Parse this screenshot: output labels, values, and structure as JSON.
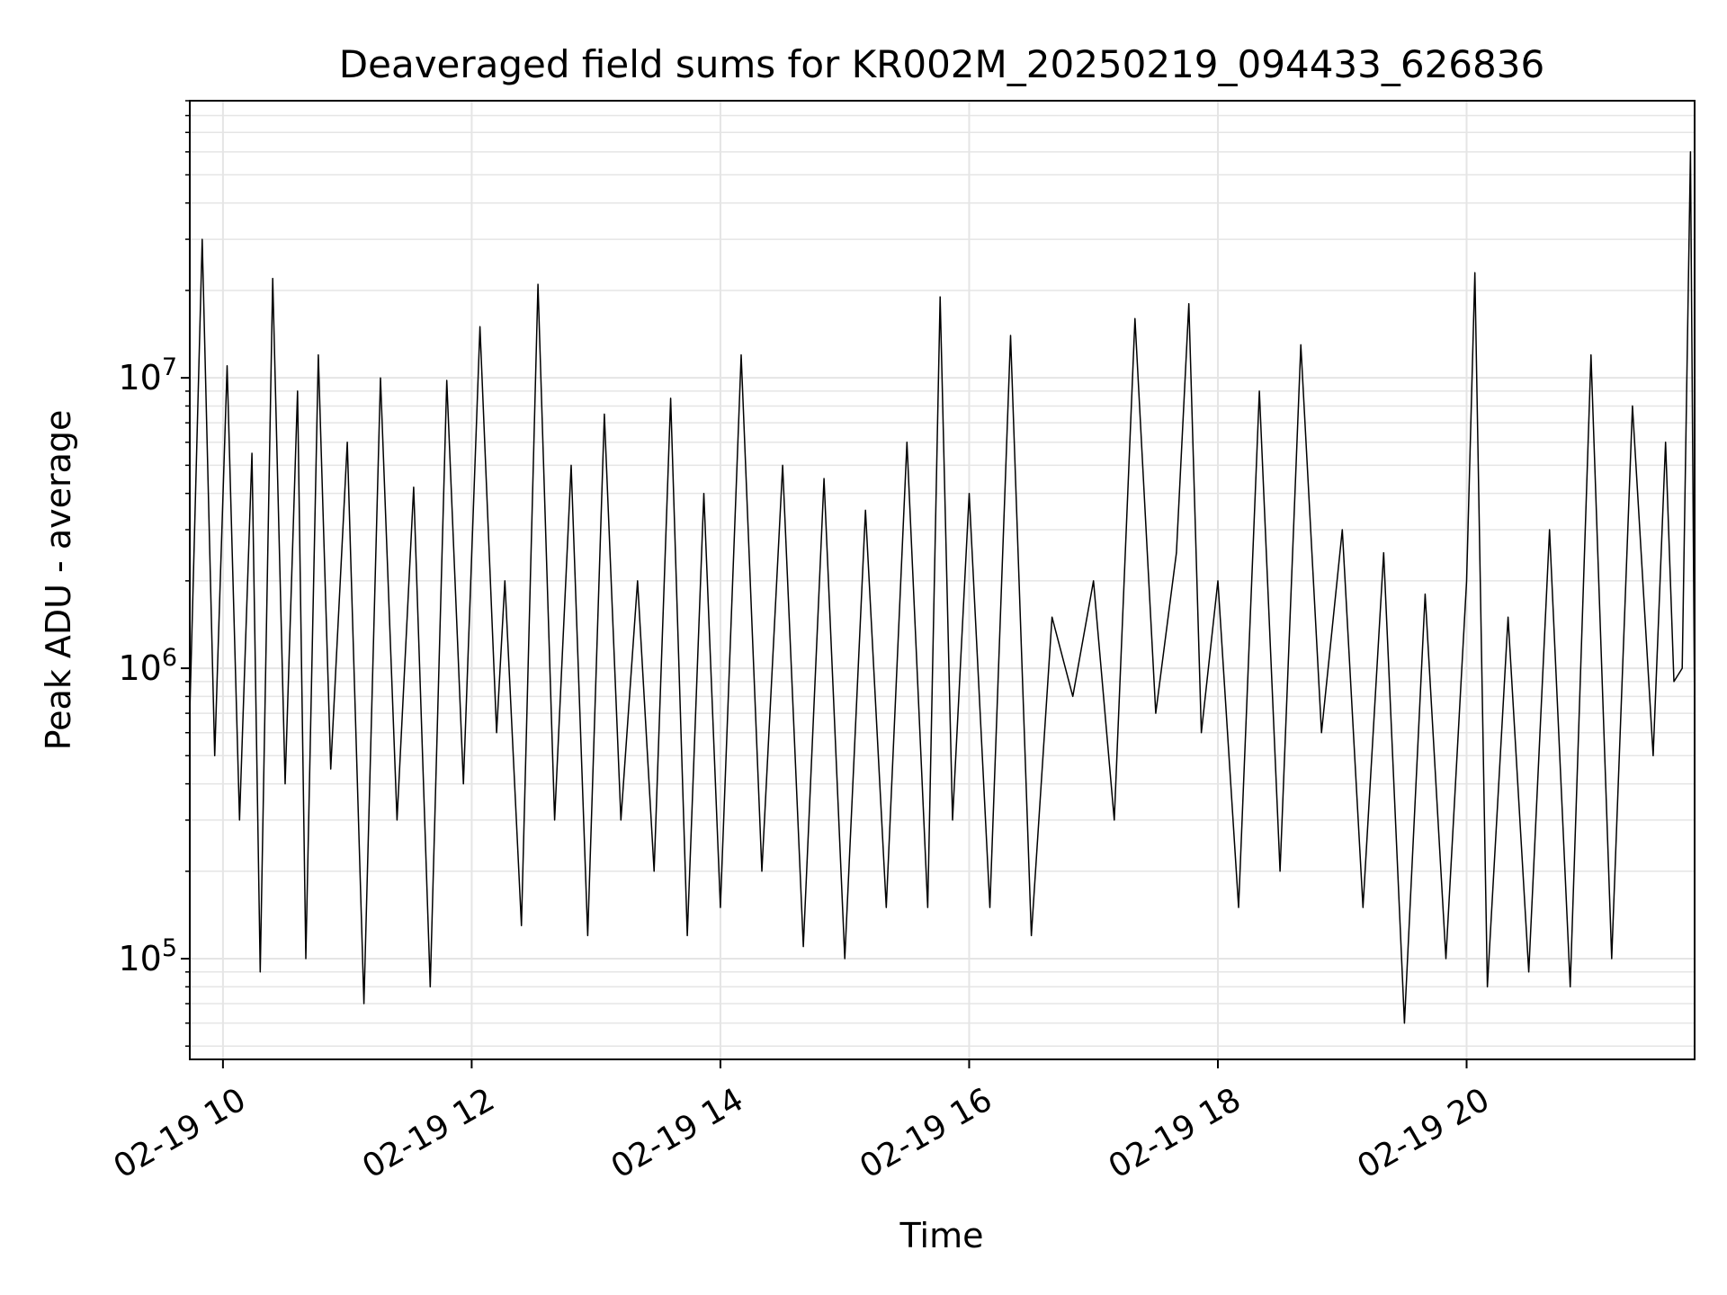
{
  "chart_data": {
    "type": "line",
    "title": "Deaveraged field sums for KR002M_20250219_094433_626836",
    "xlabel": "Time",
    "ylabel": "Peak ADU - average",
    "yscale": "log",
    "grid": true,
    "legend": "none",
    "line_color": "#000000",
    "grid_color": "#e5e5e5",
    "xlim": [
      "2025-02-19 09:44",
      "2025-02-19 21:50"
    ],
    "ylim": [
      45000,
      90000000
    ],
    "xticks": [
      {
        "time": "2025-02-19 10:00",
        "label": "02-19 10"
      },
      {
        "time": "2025-02-19 12:00",
        "label": "02-19 12"
      },
      {
        "time": "2025-02-19 14:00",
        "label": "02-19 14"
      },
      {
        "time": "2025-02-19 16:00",
        "label": "02-19 16"
      },
      {
        "time": "2025-02-19 18:00",
        "label": "02-19 18"
      },
      {
        "time": "2025-02-19 20:00",
        "label": "02-19 20"
      }
    ],
    "yticks": [
      {
        "value": 100000,
        "base": "10",
        "exp": "5"
      },
      {
        "value": 1000000,
        "base": "10",
        "exp": "6"
      },
      {
        "value": 10000000,
        "base": "10",
        "exp": "7"
      }
    ],
    "series": [
      {
        "x": [
          "2025-02-19 09:44",
          "2025-02-19 09:50",
          "2025-02-19 09:56",
          "2025-02-19 10:02",
          "2025-02-19 10:08",
          "2025-02-19 10:14",
          "2025-02-19 10:18",
          "2025-02-19 10:24",
          "2025-02-19 10:30",
          "2025-02-19 10:36",
          "2025-02-19 10:40",
          "2025-02-19 10:46",
          "2025-02-19 10:52",
          "2025-02-19 11:00",
          "2025-02-19 11:08",
          "2025-02-19 11:16",
          "2025-02-19 11:24",
          "2025-02-19 11:32",
          "2025-02-19 11:40",
          "2025-02-19 11:48",
          "2025-02-19 11:56",
          "2025-02-19 12:04",
          "2025-02-19 12:12",
          "2025-02-19 12:16",
          "2025-02-19 12:24",
          "2025-02-19 12:32",
          "2025-02-19 12:40",
          "2025-02-19 12:48",
          "2025-02-19 12:56",
          "2025-02-19 13:04",
          "2025-02-19 13:12",
          "2025-02-19 13:20",
          "2025-02-19 13:28",
          "2025-02-19 13:36",
          "2025-02-19 13:44",
          "2025-02-19 13:52",
          "2025-02-19 14:00",
          "2025-02-19 14:10",
          "2025-02-19 14:20",
          "2025-02-19 14:30",
          "2025-02-19 14:40",
          "2025-02-19 14:50",
          "2025-02-19 15:00",
          "2025-02-19 15:10",
          "2025-02-19 15:20",
          "2025-02-19 15:30",
          "2025-02-19 15:40",
          "2025-02-19 15:46",
          "2025-02-19 15:52",
          "2025-02-19 16:00",
          "2025-02-19 16:10",
          "2025-02-19 16:20",
          "2025-02-19 16:30",
          "2025-02-19 16:40",
          "2025-02-19 16:50",
          "2025-02-19 17:00",
          "2025-02-19 17:10",
          "2025-02-19 17:20",
          "2025-02-19 17:30",
          "2025-02-19 17:40",
          "2025-02-19 17:46",
          "2025-02-19 17:52",
          "2025-02-19 18:00",
          "2025-02-19 18:10",
          "2025-02-19 18:20",
          "2025-02-19 18:30",
          "2025-02-19 18:40",
          "2025-02-19 18:50",
          "2025-02-19 19:00",
          "2025-02-19 19:10",
          "2025-02-19 19:20",
          "2025-02-19 19:30",
          "2025-02-19 19:40",
          "2025-02-19 19:50",
          "2025-02-19 20:00",
          "2025-02-19 20:04",
          "2025-02-19 20:10",
          "2025-02-19 20:20",
          "2025-02-19 20:30",
          "2025-02-19 20:40",
          "2025-02-19 20:50",
          "2025-02-19 21:00",
          "2025-02-19 21:10",
          "2025-02-19 21:20",
          "2025-02-19 21:30",
          "2025-02-19 21:36",
          "2025-02-19 21:40",
          "2025-02-19 21:44",
          "2025-02-19 21:48",
          "2025-02-19 21:50"
        ],
        "values": [
          700000,
          30000000,
          500000,
          11000000,
          300000,
          5500000,
          90000,
          22000000,
          400000,
          9000000,
          100000,
          12000000,
          450000,
          6000000,
          70000,
          10000000,
          300000,
          4200000,
          80000,
          9800000,
          400000,
          15000000,
          600000,
          2000000,
          130000,
          21000000,
          300000,
          5000000,
          120000,
          7500000,
          300000,
          2000000,
          200000,
          8500000,
          120000,
          4000000,
          150000,
          12000000,
          200000,
          5000000,
          110000,
          4500000,
          100000,
          3500000,
          150000,
          6000000,
          150000,
          19000000,
          300000,
          4000000,
          150000,
          14000000,
          120000,
          1500000,
          800000,
          2000000,
          300000,
          16000000,
          700000,
          2500000,
          18000000,
          600000,
          2000000,
          150000,
          9000000,
          200000,
          13000000,
          600000,
          3000000,
          150000,
          2500000,
          60000,
          1800000,
          100000,
          2000000,
          23000000,
          80000,
          1500000,
          90000,
          3000000,
          80000,
          12000000,
          100000,
          8000000,
          500000,
          6000000,
          900000,
          1000000,
          60000000,
          700000
        ]
      }
    ]
  }
}
